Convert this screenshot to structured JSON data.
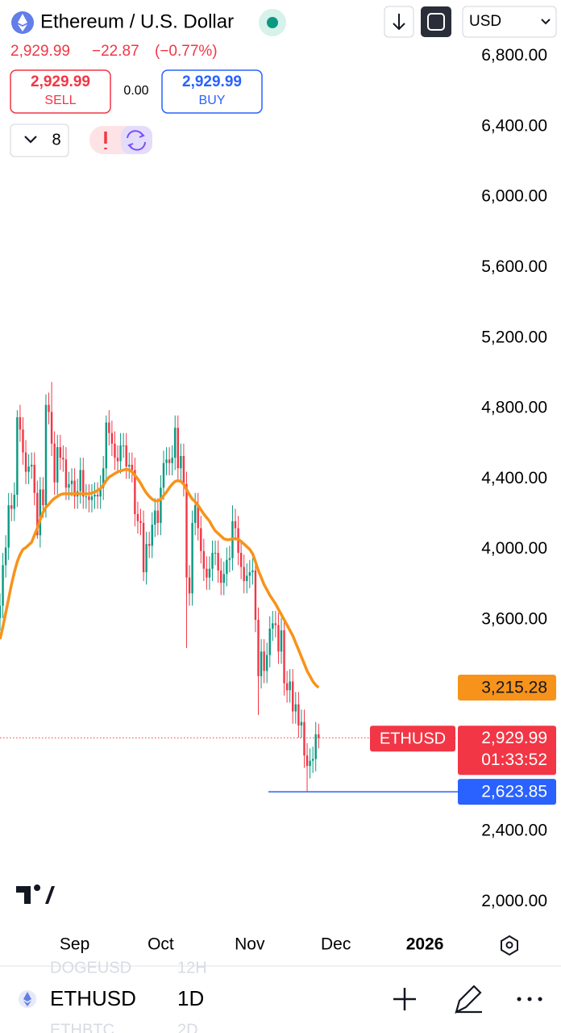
{
  "header": {
    "title": "Ethereum / U.S. Dollar",
    "last": "2,929.99",
    "change": "−22.87",
    "change_pct": "(−0.77%)",
    "currency": "USD",
    "sell_price": "2,929.99",
    "sell_label": "SELL",
    "spread": "0.00",
    "buy_price": "2,929.99",
    "buy_label": "BUY",
    "indicator_count": "8"
  },
  "chart_data": {
    "type": "candlestick",
    "up_color": "#089981",
    "down_color": "#f23645",
    "series": [
      {
        "name": "ETHUSD",
        "open": [
          3610,
          3680,
          3910,
          4010,
          4250,
          4230,
          4310,
          4750,
          4680,
          4550,
          4440,
          4470,
          4480,
          4320,
          4080,
          4340,
          4250,
          4820,
          4780,
          4600,
          4380,
          4580,
          4520,
          4510,
          4350,
          4370,
          4390,
          4300,
          4330,
          4450,
          4300,
          4300,
          4280,
          4300,
          4310,
          4300,
          4350,
          4460,
          4720,
          4660,
          4600,
          4520,
          4500,
          4590,
          4590,
          4470,
          4480,
          4450,
          4200,
          4160,
          4150,
          3870,
          4030,
          4020,
          4140,
          4220,
          4150,
          4350,
          4490,
          4510,
          4490,
          4520,
          4690,
          4460,
          4530,
          4370,
          3840,
          3750,
          4150,
          4250,
          4120,
          3990,
          3890,
          3840,
          3890,
          3980,
          3980,
          3880,
          3810,
          3860,
          3940,
          3950,
          4160,
          4120,
          3980,
          3900,
          3820,
          3850,
          3870,
          3880,
          3600,
          3280,
          3420,
          3310,
          3400,
          3550,
          3580,
          3570,
          3420,
          3540,
          3240,
          3200,
          3250,
          3080,
          3120,
          3000,
          3020,
          2830,
          2770,
          2800,
          2810,
          2950
        ],
        "high": [
          3750,
          3980,
          4080,
          4320,
          4320,
          4380,
          4790,
          4820,
          4750,
          4620,
          4540,
          4550,
          4550,
          4390,
          4410,
          4410,
          4880,
          4890,
          4950,
          4670,
          4650,
          4650,
          4590,
          4580,
          4440,
          4460,
          4460,
          4400,
          4520,
          4520,
          4370,
          4370,
          4370,
          4380,
          4380,
          4420,
          4530,
          4760,
          4790,
          4730,
          4670,
          4590,
          4660,
          4660,
          4660,
          4550,
          4550,
          4520,
          4270,
          4230,
          4220,
          4100,
          4100,
          4210,
          4290,
          4290,
          4420,
          4560,
          4580,
          4580,
          4590,
          4760,
          4760,
          4600,
          4600,
          4440,
          3910,
          4220,
          4320,
          4320,
          4190,
          4060,
          3960,
          3960,
          4050,
          4050,
          4050,
          3950,
          3930,
          4010,
          4020,
          4250,
          4230,
          4190,
          4050,
          3970,
          3920,
          3940,
          3950,
          3950,
          3670,
          3490,
          3490,
          3470,
          3620,
          3650,
          3650,
          3640,
          3610,
          3610,
          3310,
          3320,
          3320,
          3190,
          3190,
          3090,
          3090,
          2900,
          2870,
          2880,
          3020,
          3010
        ],
        "low": [
          3540,
          3610,
          3840,
          3940,
          4160,
          4160,
          4240,
          4610,
          4480,
          4370,
          4370,
          4400,
          4250,
          4060,
          4010,
          4180,
          4180,
          4710,
          4530,
          4310,
          4310,
          4450,
          4440,
          4280,
          4280,
          4300,
          4230,
          4230,
          4260,
          4230,
          4230,
          4210,
          4210,
          4230,
          4230,
          4230,
          4280,
          4390,
          4590,
          4530,
          4450,
          4430,
          4430,
          4520,
          4400,
          4400,
          4380,
          4130,
          4090,
          4080,
          3820,
          3800,
          3950,
          3950,
          4070,
          4080,
          4080,
          4280,
          4420,
          4420,
          4420,
          4450,
          4390,
          4390,
          4300,
          3440,
          3680,
          3680,
          4080,
          4050,
          3920,
          3820,
          3770,
          3770,
          3820,
          3910,
          3810,
          3740,
          3740,
          3790,
          3870,
          3880,
          4050,
          3910,
          3830,
          3750,
          3750,
          3780,
          3800,
          3530,
          3060,
          3210,
          3240,
          3240,
          3330,
          3480,
          3500,
          3350,
          3350,
          3170,
          3130,
          3130,
          3010,
          3010,
          2930,
          2930,
          2760,
          2623.85,
          2700,
          2730,
          2740,
          2870
        ],
        "close": [
          3680,
          3910,
          4010,
          4250,
          4230,
          4310,
          4750,
          4680,
          4550,
          4440,
          4470,
          4480,
          4320,
          4080,
          4340,
          4250,
          4820,
          4780,
          4600,
          4380,
          4580,
          4520,
          4510,
          4350,
          4370,
          4390,
          4300,
          4330,
          4450,
          4300,
          4300,
          4280,
          4300,
          4310,
          4300,
          4350,
          4460,
          4720,
          4660,
          4600,
          4520,
          4500,
          4590,
          4590,
          4470,
          4480,
          4450,
          4200,
          4160,
          4150,
          3870,
          4030,
          4020,
          4140,
          4220,
          4150,
          4350,
          4490,
          4510,
          4490,
          4520,
          4690,
          4460,
          4530,
          4370,
          3840,
          3750,
          4150,
          4250,
          4120,
          3990,
          3890,
          3840,
          3890,
          3980,
          3980,
          3880,
          3810,
          3860,
          3940,
          3950,
          4160,
          4120,
          3980,
          3900,
          3820,
          3850,
          3870,
          3880,
          3600,
          3280,
          3420,
          3310,
          3400,
          3550,
          3580,
          3570,
          3420,
          3540,
          3240,
          3200,
          3250,
          3080,
          3120,
          3000,
          3020,
          2830,
          2770,
          2800,
          2810,
          2950,
          2929.99
        ],
        "last_label": "2,929.99",
        "countdown": "01:33:52"
      }
    ],
    "ma": {
      "color": "#f7931a",
      "values": [
        3490,
        3560,
        3640,
        3720,
        3800,
        3870,
        3930,
        3970,
        4000,
        4010,
        4025,
        4040,
        4080,
        4120,
        4170,
        4210,
        4240,
        4255,
        4275,
        4290,
        4300,
        4310,
        4315,
        4315,
        4315,
        4315,
        4315,
        4315,
        4315,
        4315,
        4315,
        4315,
        4320,
        4325,
        4335,
        4345,
        4365,
        4390,
        4410,
        4420,
        4430,
        4440,
        4445,
        4450,
        4455,
        4450,
        4440,
        4420,
        4400,
        4375,
        4345,
        4320,
        4300,
        4285,
        4275,
        4275,
        4285,
        4305,
        4325,
        4350,
        4370,
        4385,
        4390,
        4385,
        4370,
        4340,
        4310,
        4285,
        4270,
        4250,
        4225,
        4200,
        4180,
        4160,
        4130,
        4105,
        4090,
        4075,
        4060,
        4055,
        4055,
        4060,
        4060,
        4058,
        4045,
        4030,
        4015,
        4000,
        3975,
        3930,
        3880,
        3840,
        3800,
        3770,
        3740,
        3715,
        3690,
        3660,
        3630,
        3600,
        3570,
        3540,
        3510,
        3470,
        3430,
        3390,
        3350,
        3310,
        3280,
        3250,
        3230,
        3215.28
      ],
      "last_label": "3,215.28"
    },
    "hline": {
      "value": 2623.85,
      "label": "2,623.85",
      "color": "#2962ff"
    },
    "ylim": [
      1850,
      6935
    ],
    "yticks": [
      {
        "value": 6800,
        "label": "6,800.00"
      },
      {
        "value": 6400,
        "label": "6,400.00"
      },
      {
        "value": 6000,
        "label": "6,000.00"
      },
      {
        "value": 5600,
        "label": "5,600.00"
      },
      {
        "value": 5200,
        "label": "5,200.00"
      },
      {
        "value": 4800,
        "label": "4,800.00"
      },
      {
        "value": 4400,
        "label": "4,400.00"
      },
      {
        "value": 4000,
        "label": "4,000.00"
      },
      {
        "value": 3600,
        "label": "3,600.00"
      },
      {
        "value": 2400,
        "label": "2,400.00"
      },
      {
        "value": 2000,
        "label": "2,000.00"
      }
    ],
    "xlim": [
      0,
      159.5
    ],
    "xticks": [
      {
        "value": 26,
        "label": "Sep"
      },
      {
        "value": 56,
        "label": "Oct"
      },
      {
        "value": 87,
        "label": "Nov"
      },
      {
        "value": 117,
        "label": "Dec"
      },
      {
        "value": 148,
        "label": "2026"
      }
    ]
  },
  "footer": {
    "symbol": "ETHUSD",
    "interval": "1D",
    "ghost_above": "DOGEUSD",
    "ghost_above_interval": "12H",
    "ghost_below": "ETHBTC",
    "ghost_below_interval": "2D"
  }
}
